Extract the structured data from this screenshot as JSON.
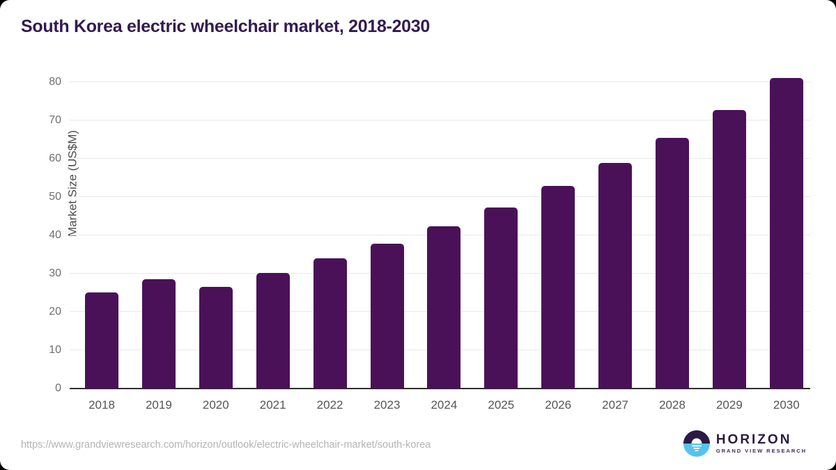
{
  "header": {
    "title": "South Korea electric wheelchair market, 2018-2030"
  },
  "chart_data": {
    "type": "bar",
    "title": "South Korea electric wheelchair market, 2018-2030",
    "categories": [
      "2018",
      "2019",
      "2020",
      "2021",
      "2022",
      "2023",
      "2024",
      "2025",
      "2026",
      "2027",
      "2028",
      "2029",
      "2030"
    ],
    "values": [
      25.1,
      28.5,
      26.5,
      30.1,
      34.0,
      37.9,
      42.3,
      47.3,
      52.9,
      58.9,
      65.5,
      72.8,
      81.1
    ],
    "xlabel": "",
    "ylabel": "Market Size (US$M)",
    "ylim": [
      0,
      80
    ],
    "yticks": [
      0,
      10,
      20,
      30,
      40,
      50,
      60,
      70,
      80
    ],
    "grid": true,
    "legend": "none",
    "bar_color": "#4A1158"
  },
  "footer": {
    "source_url": "https://www.grandviewresearch.com/horizon/outlook/electric-wheelchair-market/south-korea",
    "logo": {
      "brand": "HORIZON",
      "sub_brand": "GRAND VIEW RESEARCH"
    }
  },
  "colors": {
    "bar": "#4A1158",
    "title": "#331A50",
    "gridline": "#e8e8e8",
    "axis_line": "#2e2e2e",
    "tick_label": "#6e6e6e",
    "url_text": "#b3b3b3",
    "logo_purple": "#2B1A43",
    "logo_blue": "#55C3EE"
  }
}
